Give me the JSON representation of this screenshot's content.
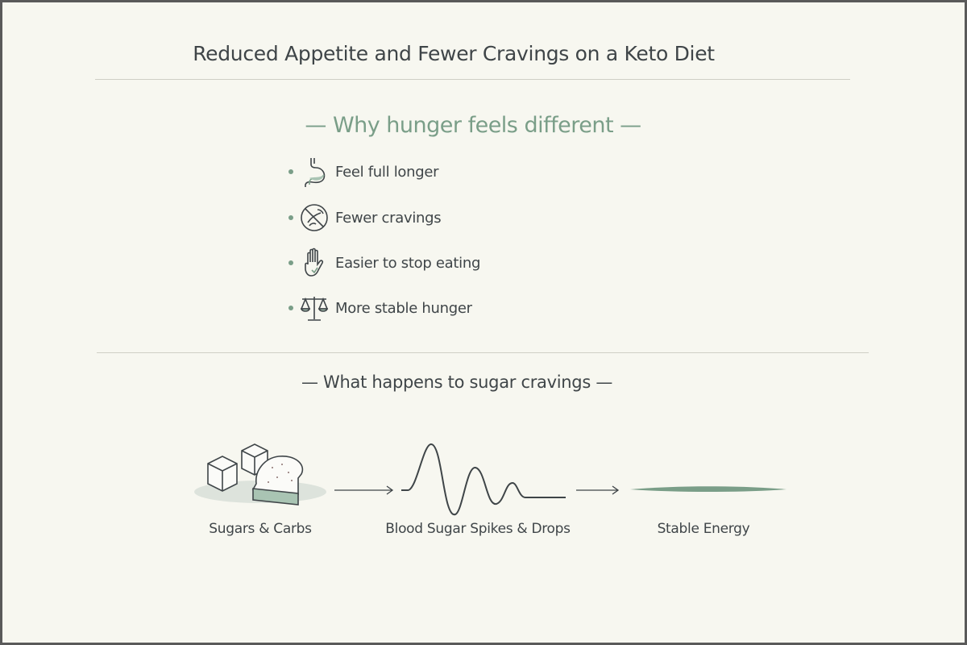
{
  "title": "Reduced Appetite and Fewer Cravings on a Keto Diet",
  "section1": {
    "heading": "— Why hunger feels different —",
    "items": [
      {
        "icon": "stomach-icon",
        "label": "Feel full longer"
      },
      {
        "icon": "no-cravings-icon",
        "label": "Fewer cravings"
      },
      {
        "icon": "hand-stop-icon",
        "label": "Easier to stop eating"
      },
      {
        "icon": "balance-scale-icon",
        "label": "More stable hunger"
      }
    ]
  },
  "section2": {
    "heading": "— What happens to sugar cravings —",
    "steps": [
      {
        "icon": "sugar-cubes-bread-icon",
        "label": "Sugars & Carbs"
      },
      {
        "icon": "blood-sugar-wave-icon",
        "label": "Blood Sugar Spikes & Drops"
      },
      {
        "icon": "flat-line-icon",
        "label": "Stable Energy"
      }
    ]
  },
  "colors": {
    "accent": "#7a9e88",
    "text": "#3f4548",
    "background": "#f7f7f0"
  }
}
